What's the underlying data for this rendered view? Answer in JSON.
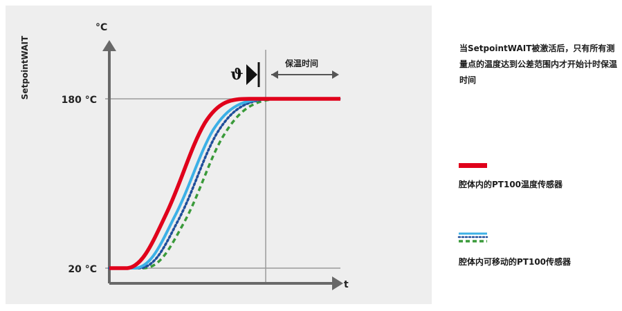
{
  "side_label": "SetpointWAIT",
  "y_axis_unit": "°C",
  "x_axis_label": "t",
  "y_ticks": [
    "180 °C",
    "20 °C"
  ],
  "interval_label": "保温时间",
  "theta_symbol": "ϑ",
  "description": "当SetpointWAIT被激活后，只有所有测量点的温度达到公差范围内才开始计时保温时间",
  "legend": [
    {
      "label": "腔体内的PT100温度传感器",
      "color": "#e0001b",
      "style": "solid"
    },
    {
      "label": "腔体内可移动的PT100传感器",
      "colors": [
        "#3cb0e6",
        "#1f4e9a",
        "#3a9a3a"
      ],
      "style": "dotted-dashed"
    }
  ],
  "colors": {
    "background_panel": "#eeeeee",
    "axis": "#686868",
    "red_curve": "#e0001b",
    "blue_curve": "#3cb0e6",
    "navy_dotted": "#1f4e9a",
    "green_dashed": "#3a9a3a"
  },
  "chart_data": {
    "type": "line",
    "y_range": [
      20,
      180
    ],
    "series": [
      {
        "style": "solid",
        "color": "#e0001b"
      },
      {
        "style": "solid",
        "color": "#3cb0e6"
      },
      {
        "style": "dotted",
        "color": "#1f4e9a"
      },
      {
        "style": "dashed",
        "color": "#3a9a3a"
      }
    ]
  }
}
